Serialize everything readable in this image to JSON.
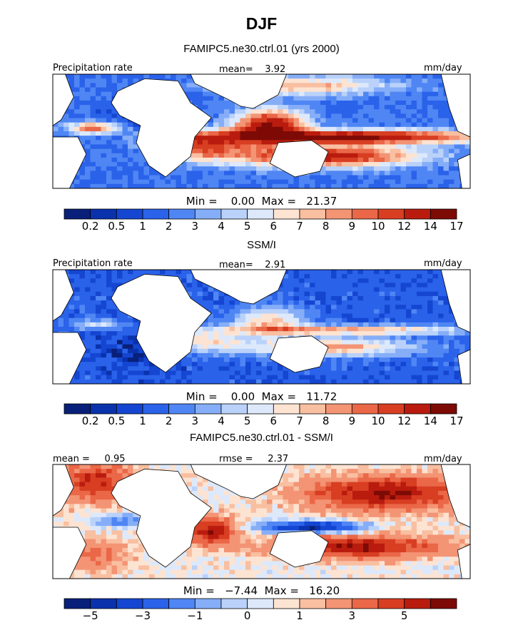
{
  "page_title": "DJF",
  "panels": [
    {
      "title": "FAMIPC5.ne30.ctrl.01 (yrs 2000)",
      "left_label": "Precipitation rate",
      "center_label": "mean=    3.92",
      "right_label": "mm/day",
      "minmax": "Min =    0.00  Max =   21.37",
      "colorbar_ticks": [
        "0.2",
        "0.5",
        "1",
        "2",
        "3",
        "4",
        "5",
        "6",
        "7",
        "8",
        "9",
        "10",
        "12",
        "14",
        "17"
      ]
    },
    {
      "title": "SSM/I",
      "left_label": "Precipitation rate",
      "center_label": "mean=    2.91",
      "right_label": "mm/day",
      "minmax": "Min =    0.00  Max =   11.72",
      "colorbar_ticks": [
        "0.2",
        "0.5",
        "1",
        "2",
        "3",
        "4",
        "5",
        "6",
        "7",
        "8",
        "9",
        "10",
        "12",
        "14",
        "17"
      ]
    },
    {
      "title": "FAMIPC5.ne30.ctrl.01 - SSM/I",
      "left_label": "mean =     0.95",
      "center_label": "rmse =     2.37",
      "right_label": "mm/day",
      "minmax": "Min =   −7.44  Max =   16.20",
      "colorbar_ticks": [
        "−5",
        "",
        "−3",
        "",
        "−1",
        "",
        "0",
        "",
        "1",
        "",
        "3",
        "",
        "5",
        ""
      ]
    }
  ],
  "chart_data": [
    {
      "type": "heatmap",
      "title": "FAMIPC5.ne30.ctrl.01 (yrs 2000)",
      "variable": "Precipitation rate",
      "units": "mm/day",
      "mean": 3.92,
      "min": 0.0,
      "max": 21.37,
      "contour_levels": [
        0.2,
        0.5,
        1,
        2,
        3,
        4,
        5,
        6,
        7,
        8,
        9,
        10,
        12,
        14,
        17
      ]
    },
    {
      "type": "heatmap",
      "title": "SSM/I",
      "variable": "Precipitation rate",
      "units": "mm/day",
      "mean": 2.91,
      "min": 0.0,
      "max": 11.72,
      "contour_levels": [
        0.2,
        0.5,
        1,
        2,
        3,
        4,
        5,
        6,
        7,
        8,
        9,
        10,
        12,
        14,
        17
      ]
    },
    {
      "type": "heatmap",
      "title": "FAMIPC5.ne30.ctrl.01 - SSM/I",
      "units": "mm/day",
      "mean": 0.95,
      "rmse": 2.37,
      "min": -7.44,
      "max": 16.2,
      "contour_levels": [
        -5,
        -3,
        -1,
        0,
        1,
        3,
        5
      ]
    }
  ],
  "colors": {
    "precip_scale": [
      "#08207a",
      "#0a32ad",
      "#1446d2",
      "#2a62ea",
      "#4f86f4",
      "#86aef8",
      "#bad2fa",
      "#dde9fb",
      "#fde3d2",
      "#f9bfa1",
      "#f39474",
      "#ea6747",
      "#d83e22",
      "#b91c0e",
      "#7d0a05"
    ],
    "diff_scale": [
      "#08207a",
      "#0a32ad",
      "#1446d2",
      "#2a62ea",
      "#4f86f4",
      "#86aef8",
      "#bad2fa",
      "#dde9fb",
      "#fde3d2",
      "#f9bfa1",
      "#f39474",
      "#ea6747",
      "#d83e22",
      "#b91c0e",
      "#7d0a05"
    ],
    "land": "#ffffff",
    "coast": "#000000"
  }
}
